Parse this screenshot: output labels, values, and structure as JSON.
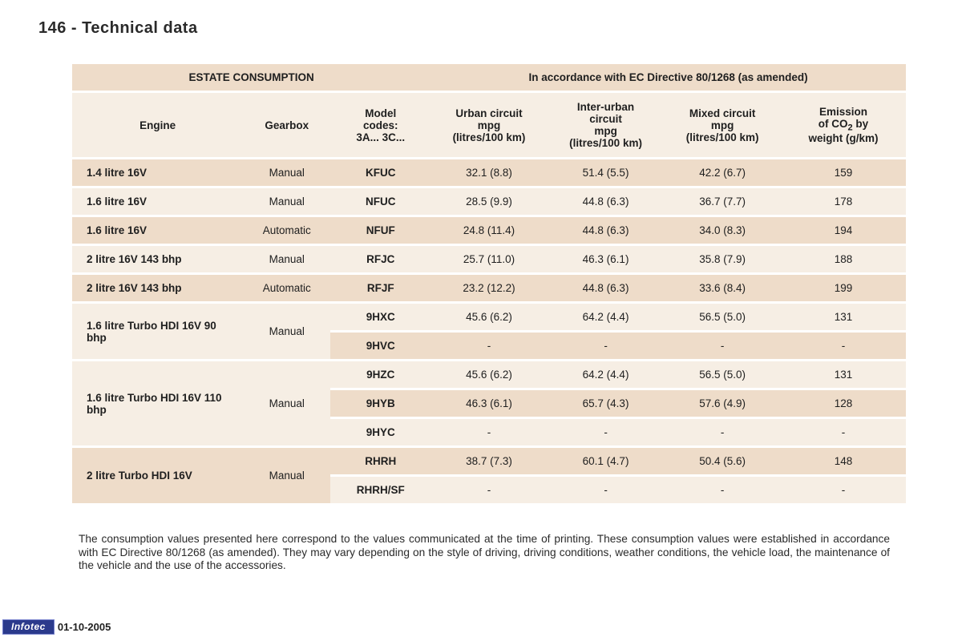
{
  "colors": {
    "band_dark": "#eedcc9",
    "band_light": "#f6eee4",
    "text": "#202020",
    "infotec_bg": "#2b3a8c",
    "infotec_border": "#6f7bc9",
    "page_bg": "#ffffff"
  },
  "typography": {
    "base_family": "Arial, Helvetica, sans-serif",
    "title_size_pt": 15,
    "cell_size_pt": 10,
    "note_size_pt": 10
  },
  "page_title": "146 - Technical data",
  "table": {
    "header_top_left": "ESTATE CONSUMPTION",
    "header_top_right": "In accordance with EC Directive 80/1268 (as amended)",
    "columns": {
      "engine": "Engine",
      "gearbox": "Gearbox",
      "model_line1": "Model",
      "model_line2": "codes:",
      "model_line3": "3A... 3C...",
      "urban_line1": "Urban circuit",
      "urban_line2": "mpg",
      "urban_line3": "(litres/100 km)",
      "inter_line1": "Inter-urban",
      "inter_line2": "circuit",
      "inter_line3": "mpg",
      "inter_line4": "(litres/100 km)",
      "mixed_line1": "Mixed circuit",
      "mixed_line2": "mpg",
      "mixed_line3": "(litres/100 km)",
      "co2_line1": "Emission",
      "co2_line2a": "of CO",
      "co2_line2b": "2",
      "co2_line2c": " by",
      "co2_line3": "weight (g/km)"
    },
    "rows": [
      {
        "band": "dark",
        "engine": "1.4 litre 16V",
        "gearbox": "Manual",
        "model": "KFUC",
        "urban": "32.1 (8.8)",
        "inter": "51.4 (5.5)",
        "mixed": "42.2 (6.7)",
        "co2": "159"
      },
      {
        "band": "light",
        "engine": "1.6 litre 16V",
        "gearbox": "Manual",
        "model": "NFUC",
        "urban": "28.5 (9.9)",
        "inter": "44.8 (6.3)",
        "mixed": "36.7 (7.7)",
        "co2": "178"
      },
      {
        "band": "dark",
        "engine": "1.6 litre 16V",
        "gearbox": "Automatic",
        "model": "NFUF",
        "urban": "24.8 (11.4)",
        "inter": "44.8 (6.3)",
        "mixed": "34.0 (8.3)",
        "co2": "194"
      },
      {
        "band": "light",
        "engine": "2 litre 16V 143 bhp",
        "gearbox": "Manual",
        "model": "RFJC",
        "urban": "25.7 (11.0)",
        "inter": "46.3 (6.1)",
        "mixed": "35.8 (7.9)",
        "co2": "188"
      },
      {
        "band": "dark",
        "engine": "2 litre 16V 143 bhp",
        "gearbox": "Automatic",
        "model": "RFJF",
        "urban": "23.2 (12.2)",
        "inter": "44.8 (6.3)",
        "mixed": "33.6 (8.4)",
        "co2": "199"
      },
      {
        "band": "light",
        "group_engine": "1.6 litre Turbo HDI 16V 90 bhp",
        "group_gearbox": "Manual",
        "model": "9HXC",
        "urban": "45.6 (6.2)",
        "inter": "64.2 (4.4)",
        "mixed": "56.5 (5.0)",
        "co2": "131"
      },
      {
        "band": "dark",
        "model": "9HVC",
        "urban": "-",
        "inter": "-",
        "mixed": "-",
        "co2": "-"
      },
      {
        "band": "light",
        "group_engine": "1.6 litre Turbo HDI 16V 110 bhp",
        "group_gearbox": "Manual",
        "model": "9HZC",
        "urban": "45.6 (6.2)",
        "inter": "64.2 (4.4)",
        "mixed": "56.5 (5.0)",
        "co2": "131"
      },
      {
        "band": "dark",
        "model": "9HYB",
        "urban": "46.3 (6.1)",
        "inter": "65.7 (4.3)",
        "mixed": "57.6 (4.9)",
        "co2": "128"
      },
      {
        "band": "light",
        "model": "9HYC",
        "urban": "-",
        "inter": "-",
        "mixed": "-",
        "co2": "-"
      },
      {
        "band": "dark",
        "group_engine": "2 litre Turbo HDI 16V",
        "group_gearbox": "Manual",
        "model": "RHRH",
        "urban": "38.7 (7.3)",
        "inter": "60.1 (4.7)",
        "mixed": "50.4 (5.6)",
        "co2": "148"
      },
      {
        "band": "light",
        "model": "RHRH/SF",
        "urban": "-",
        "inter": "-",
        "mixed": "-",
        "co2": "-"
      }
    ]
  },
  "note_text": "The consumption values presented here correspond to the values communicated at the time of printing. These consumption values were established in accordance with EC Directive 80/1268 (as amended). They may vary depending on the style of driving, driving conditions, weather conditions, the vehicle load, the maintenance of the vehicle and the use of the accessories.",
  "footer": {
    "badge": "Infotec",
    "date": "01-10-2005"
  }
}
